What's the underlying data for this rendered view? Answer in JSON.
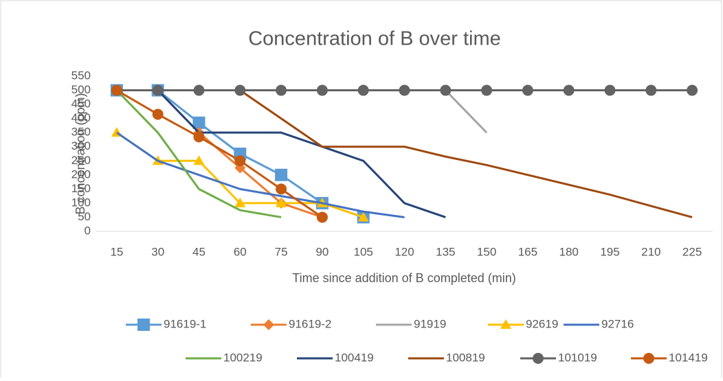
{
  "chart_data": {
    "type": "line",
    "title": "Concentration of B over time",
    "x_label": "Time since addition of B completed (min)",
    "y_label": "B concentration (ppm)",
    "categories": [
      "15",
      "30",
      "45",
      "60",
      "75",
      "90",
      "105",
      "120",
      "135",
      "150",
      "165",
      "180",
      "195",
      "210",
      "225"
    ],
    "ylim": [
      0,
      550
    ],
    "yticks": [
      0,
      50,
      100,
      150,
      200,
      250,
      300,
      350,
      400,
      450,
      500,
      550
    ],
    "grid": false,
    "legend": "bottom",
    "series": [
      {
        "name": "91619-1",
        "color": "#5b9bd5",
        "marker": "square",
        "values": [
          500,
          500,
          385,
          275,
          200,
          100,
          50,
          null,
          null,
          null,
          null,
          null,
          null,
          null,
          null
        ]
      },
      {
        "name": "91619-2",
        "color": "#ed7d31",
        "marker": "diamond",
        "values": [
          500,
          500,
          350,
          225,
          100,
          50,
          null,
          null,
          null,
          null,
          null,
          null,
          null,
          null,
          null
        ]
      },
      {
        "name": "91919",
        "color": "#a5a5a5",
        "marker": "none",
        "values": [
          500,
          500,
          500,
          500,
          500,
          500,
          500,
          500,
          500,
          350,
          null,
          null,
          null,
          null,
          null
        ]
      },
      {
        "name": "92619",
        "color": "#ffc000",
        "marker": "triangle",
        "values": [
          350,
          250,
          250,
          100,
          100,
          100,
          50,
          null,
          null,
          null,
          null,
          null,
          null,
          null,
          null
        ]
      },
      {
        "name": "92716",
        "color": "#4472c4",
        "marker": "none",
        "values": [
          350,
          250,
          200,
          150,
          125,
          100,
          70,
          50,
          null,
          null,
          null,
          null,
          null,
          null,
          null
        ]
      },
      {
        "name": "100219",
        "color": "#70ad47",
        "marker": "none",
        "values": [
          500,
          350,
          150,
          75,
          50,
          null,
          null,
          null,
          null,
          null,
          null,
          null,
          null,
          null,
          null
        ]
      },
      {
        "name": "100419",
        "color": "#264478",
        "marker": "none",
        "values": [
          500,
          500,
          350,
          350,
          350,
          300,
          250,
          100,
          50,
          null,
          null,
          null,
          null,
          null,
          null
        ]
      },
      {
        "name": "100819",
        "color": "#9e480e",
        "marker": "none",
        "values": [
          500,
          500,
          500,
          500,
          400,
          300,
          300,
          300,
          265,
          235,
          200,
          165,
          130,
          90,
          50
        ]
      },
      {
        "name": "101019",
        "color": "#636363",
        "marker": "circle",
        "values": [
          500,
          500,
          500,
          500,
          500,
          500,
          500,
          500,
          500,
          500,
          500,
          500,
          500,
          500,
          500
        ]
      },
      {
        "name": "101419",
        "color": "#c55a11",
        "marker": "circle",
        "values": [
          500,
          415,
          335,
          250,
          150,
          50,
          null,
          null,
          null,
          null,
          null,
          null,
          null,
          null,
          null
        ]
      }
    ]
  }
}
